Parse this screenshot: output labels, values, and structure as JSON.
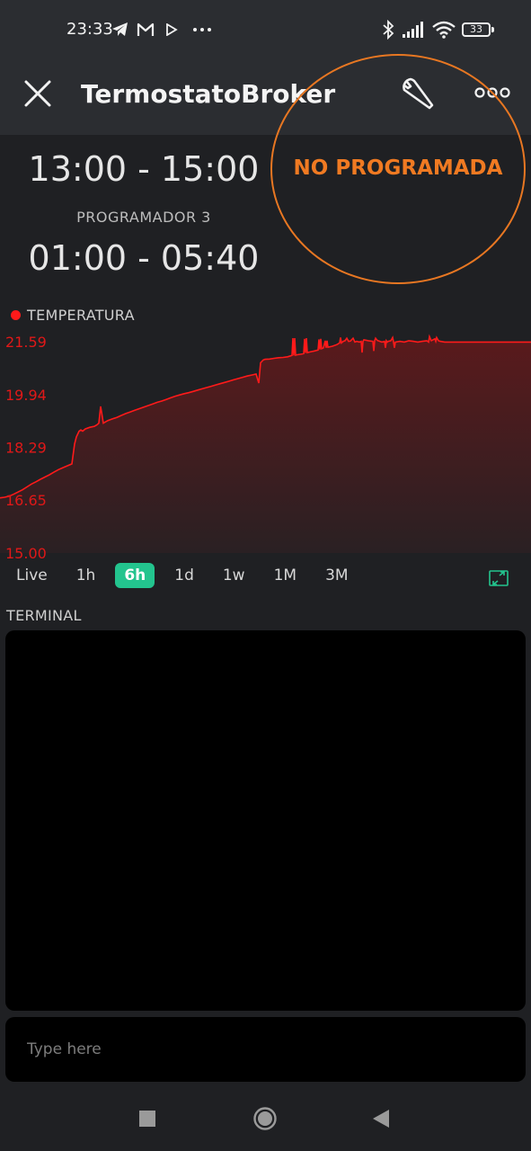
{
  "status_bar": {
    "time": "23:33",
    "battery": "33",
    "icons": [
      "telegram-icon",
      "gmail-icon",
      "play-icon",
      "more-dots-icon",
      "bluetooth-icon",
      "signal-icon",
      "wifi-icon",
      "battery-icon"
    ]
  },
  "header": {
    "title": "TermostatoBroker",
    "close_icon": "close-icon",
    "settings_icon": "wrench-icon",
    "more_icon": "more-icon"
  },
  "scheduler": {
    "time_range_1": "13:00 - 15:00",
    "label": "PROGRAMADOR 3",
    "time_range_2": "01:00 - 05:40",
    "status": "NO PROGRAMADA",
    "status_color": "#f07a22"
  },
  "chart_data": {
    "type": "area",
    "series": [
      {
        "name": "TEMPERATURA",
        "color": "#ff1a1a",
        "x": [
          0,
          5,
          10,
          15,
          20,
          25,
          30,
          35,
          40,
          45,
          50,
          55,
          60,
          65,
          70,
          75,
          80,
          83,
          85,
          88,
          90,
          92,
          95,
          100,
          105,
          108,
          110,
          112,
          115,
          118,
          120,
          125,
          130,
          135,
          140,
          145,
          150,
          155,
          160,
          165,
          170,
          175,
          180,
          185,
          190,
          195,
          200,
          205,
          210,
          215,
          220,
          225,
          230,
          235,
          240,
          245,
          250,
          255,
          260,
          265,
          270,
          275,
          280,
          285,
          288,
          290,
          293,
          295,
          300,
          305,
          310,
          315,
          320,
          325,
          326,
          327,
          328,
          329,
          330,
          335,
          338,
          339,
          340,
          341,
          342,
          345,
          350,
          354,
          355,
          356,
          357,
          358,
          360,
          362,
          363,
          364,
          365,
          370,
          375,
          378,
          379,
          380,
          382,
          384,
          386,
          388,
          390,
          393,
          395,
          397,
          400,
          402,
          403,
          404,
          405,
          410,
          415,
          416,
          417,
          418,
          420,
          425,
          428,
          429,
          430,
          431,
          432,
          435,
          437,
          438,
          439,
          440,
          445,
          450,
          455,
          460,
          465,
          470,
          475,
          476,
          477,
          478,
          480,
          484,
          485,
          486,
          488,
          490,
          495,
          500,
          520,
          540,
          560,
          580,
          591
        ],
        "values": [
          16.72,
          16.74,
          16.77,
          16.83,
          16.9,
          16.97,
          17.06,
          17.15,
          17.22,
          17.3,
          17.37,
          17.44,
          17.52,
          17.6,
          17.66,
          17.72,
          17.78,
          18.4,
          18.62,
          18.8,
          18.84,
          18.8,
          18.87,
          18.92,
          18.95,
          19.0,
          19.05,
          19.57,
          19.05,
          19.1,
          19.13,
          19.18,
          19.23,
          19.29,
          19.35,
          19.4,
          19.45,
          19.5,
          19.55,
          19.6,
          19.65,
          19.7,
          19.74,
          19.79,
          19.84,
          19.89,
          19.93,
          19.97,
          20.0,
          20.04,
          20.08,
          20.12,
          20.16,
          20.2,
          20.24,
          20.28,
          20.32,
          20.36,
          20.4,
          20.44,
          20.48,
          20.52,
          20.55,
          20.58,
          20.3,
          20.93,
          21.02,
          21.04,
          21.05,
          21.07,
          21.09,
          21.1,
          21.12,
          21.16,
          21.7,
          21.16,
          21.7,
          21.17,
          21.18,
          21.2,
          21.22,
          21.68,
          21.24,
          21.7,
          21.25,
          21.27,
          21.3,
          21.33,
          21.66,
          21.35,
          21.68,
          21.37,
          21.4,
          21.62,
          21.4,
          21.62,
          21.42,
          21.45,
          21.5,
          21.55,
          21.72,
          21.55,
          21.6,
          21.62,
          21.7,
          21.6,
          21.61,
          21.7,
          21.58,
          21.6,
          21.58,
          21.6,
          21.25,
          21.6,
          21.65,
          21.62,
          21.6,
          21.3,
          21.62,
          21.7,
          21.63,
          21.58,
          21.6,
          21.4,
          21.62,
          21.58,
          21.6,
          21.62,
          21.72,
          21.58,
          21.4,
          21.58,
          21.6,
          21.58,
          21.62,
          21.6,
          21.58,
          21.6,
          21.62,
          21.6,
          21.58,
          21.75,
          21.62,
          21.68,
          21.6,
          21.72,
          21.62,
          21.6,
          21.58,
          21.58,
          21.58,
          21.58,
          21.58,
          21.58,
          21.58
        ]
      }
    ],
    "yticks": [
      "21.59",
      "19.94",
      "18.29",
      "16.65",
      "15.00"
    ],
    "ylim": [
      15.0,
      21.59
    ],
    "tick_color": "#e01818",
    "ranges": [
      "Live",
      "1h",
      "6h",
      "1d",
      "1w",
      "1M",
      "3M"
    ],
    "active_range": "6h",
    "active_color": "#23c48e"
  },
  "terminal": {
    "label": "TERMINAL",
    "placeholder": "Type here"
  },
  "nav_bar": {
    "icons": [
      "recents-icon",
      "home-icon",
      "back-icon"
    ]
  }
}
